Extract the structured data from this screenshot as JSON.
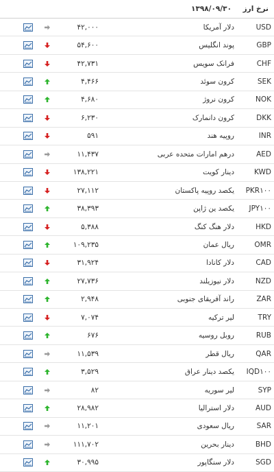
{
  "header": {
    "title": "نرخ ارز",
    "date": "۱۳۹۸/۰۹/۳۰"
  },
  "table": {
    "rows": [
      {
        "code": "USD",
        "name": "دلار آمریکا",
        "rate": "۴۲,۰۰۰",
        "trend": "flat"
      },
      {
        "code": "GBP",
        "name": "پوند انگلیس",
        "rate": "۵۴,۶۰۰",
        "trend": "down"
      },
      {
        "code": "CHF",
        "name": "فرانک سویس",
        "rate": "۴۲,۷۳۱",
        "trend": "down"
      },
      {
        "code": "SEK",
        "name": "کرون سوئد",
        "rate": "۴,۴۶۶",
        "trend": "up"
      },
      {
        "code": "NOK",
        "name": "کرون نروژ",
        "rate": "۴,۶۸۰",
        "trend": "up"
      },
      {
        "code": "DKK",
        "name": "کرون دانمارک",
        "rate": "۶,۲۳۰",
        "trend": "down"
      },
      {
        "code": "INR",
        "name": "روپیه هند",
        "rate": "۵۹۱",
        "trend": "down"
      },
      {
        "code": "AED",
        "name": "درهم امارات متحده عربی",
        "rate": "۱۱,۴۳۷",
        "trend": "flat"
      },
      {
        "code": "KWD",
        "name": "دینار کویت",
        "rate": "۱۳۸,۲۲۱",
        "trend": "down"
      },
      {
        "code": "PKR۱۰۰",
        "name": "یکصد روپیه پاکستان",
        "rate": "۲۷,۱۱۲",
        "trend": "down"
      },
      {
        "code": "JPY۱۰۰",
        "name": "یکصد ین ژاپن",
        "rate": "۳۸,۳۹۳",
        "trend": "up"
      },
      {
        "code": "HKD",
        "name": "دلار هنگ کنگ",
        "rate": "۵,۳۸۸",
        "trend": "down"
      },
      {
        "code": "OMR",
        "name": "ریال عمان",
        "rate": "۱۰۹,۲۳۵",
        "trend": "up"
      },
      {
        "code": "CAD",
        "name": "دلار کانادا",
        "rate": "۳۱,۹۲۴",
        "trend": "down"
      },
      {
        "code": "NZD",
        "name": "دلار نیوزیلند",
        "rate": "۲۷,۷۳۶",
        "trend": "up"
      },
      {
        "code": "ZAR",
        "name": "راند آفریقای جنوبی",
        "rate": "۲,۹۴۸",
        "trend": "up"
      },
      {
        "code": "TRY",
        "name": "لیر ترکیه",
        "rate": "۷,۰۷۴",
        "trend": "down"
      },
      {
        "code": "RUB",
        "name": "روبل روسیه",
        "rate": "۶۷۶",
        "trend": "up"
      },
      {
        "code": "QAR",
        "name": "ریال قطر",
        "rate": "۱۱,۵۳۹",
        "trend": "flat"
      },
      {
        "code": "IQD۱۰۰",
        "name": "یکصد دینار عراق",
        "rate": "۳,۵۲۹",
        "trend": "up"
      },
      {
        "code": "SYP",
        "name": "لیر سوریه",
        "rate": "۸۲",
        "trend": "flat"
      },
      {
        "code": "AUD",
        "name": "دلار استرالیا",
        "rate": "۲۸,۹۸۲",
        "trend": "up"
      },
      {
        "code": "SAR",
        "name": "ریال سعودی",
        "rate": "۱۱,۲۰۱",
        "trend": "flat"
      },
      {
        "code": "BHD",
        "name": "دینار بحرین",
        "rate": "۱۱۱,۷۰۲",
        "trend": "flat"
      },
      {
        "code": "SGD",
        "name": "دلار سنگاپور",
        "rate": "۳۰,۹۹۵",
        "trend": "up"
      }
    ]
  }
}
